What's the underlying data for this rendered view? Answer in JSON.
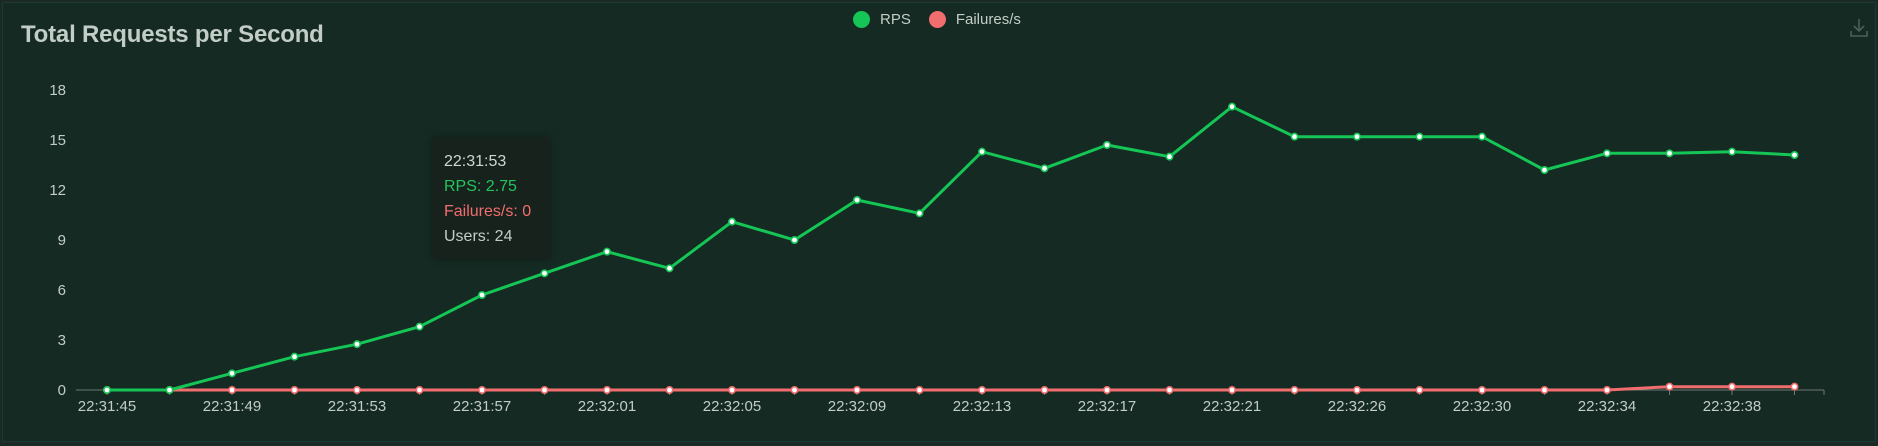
{
  "title": "Total Requests per Second",
  "legend": [
    {
      "label": "RPS",
      "color": "#15c556"
    },
    {
      "label": "Failures/s",
      "color": "#f26d6d"
    }
  ],
  "tooltip": {
    "time": "22:31:53",
    "rps": "RPS: 2.75",
    "failures": "Failures/s: 0",
    "users": "Users: 24"
  },
  "chart_data": {
    "type": "line",
    "title": "Total Requests per Second",
    "xlabel": "",
    "ylabel": "",
    "ylim": [
      0,
      18
    ],
    "yticks": [
      0,
      3,
      6,
      9,
      12,
      15,
      18
    ],
    "grid": false,
    "legend_position": "top-center",
    "x_tick_labels": [
      "22:31:45",
      "22:31:49",
      "22:31:53",
      "22:31:57",
      "22:32:01",
      "22:32:05",
      "22:32:09",
      "22:32:13",
      "22:32:17",
      "22:32:21",
      "22:32:26",
      "22:32:30",
      "22:32:34",
      "22:32:38"
    ],
    "series": [
      {
        "name": "RPS",
        "color": "#15c556",
        "values": [
          0,
          0,
          1,
          2,
          2.75,
          3.8,
          5.7,
          7,
          8.3,
          7.3,
          10.1,
          9,
          11.4,
          10.6,
          14.3,
          13.3,
          14.7,
          14,
          17,
          15.2,
          15.2,
          15.2,
          15.2,
          13.2,
          14.2,
          14.2,
          14.3,
          14.1
        ]
      },
      {
        "name": "Failures/s",
        "color": "#f26d6d",
        "values": [
          0,
          0,
          0,
          0,
          0,
          0,
          0,
          0,
          0,
          0,
          0,
          0,
          0,
          0,
          0,
          0,
          0,
          0,
          0,
          0,
          0,
          0,
          0,
          0,
          0,
          0.2,
          0.2,
          0.2
        ]
      }
    ]
  }
}
